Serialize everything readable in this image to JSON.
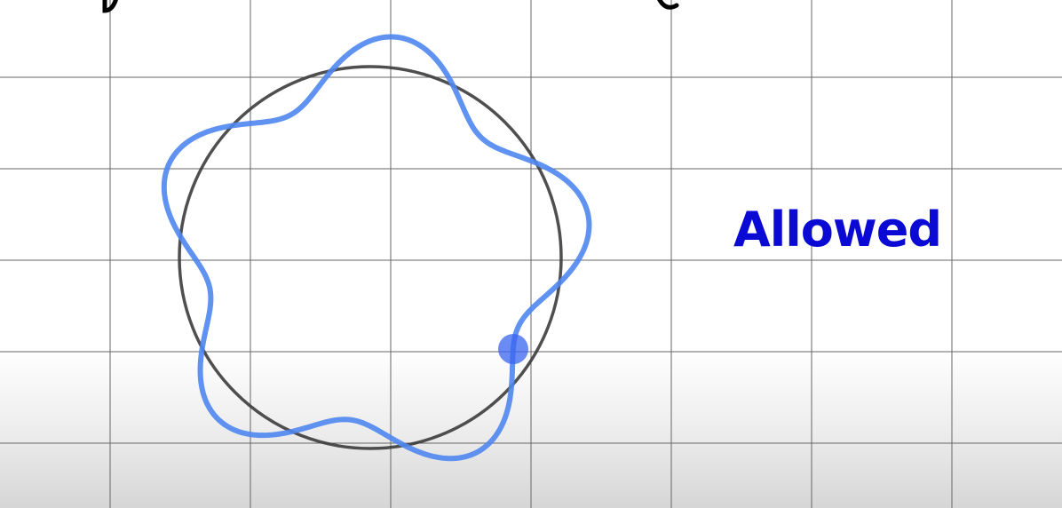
{
  "label": "Allowed",
  "colors": {
    "label": "#0a0ad4",
    "wave": "#4f86f0",
    "circle": "#3c3c3c",
    "dot": "#3a64f0",
    "grid": "#666666",
    "title": "#000000"
  },
  "wave": {
    "lobes": 5
  }
}
